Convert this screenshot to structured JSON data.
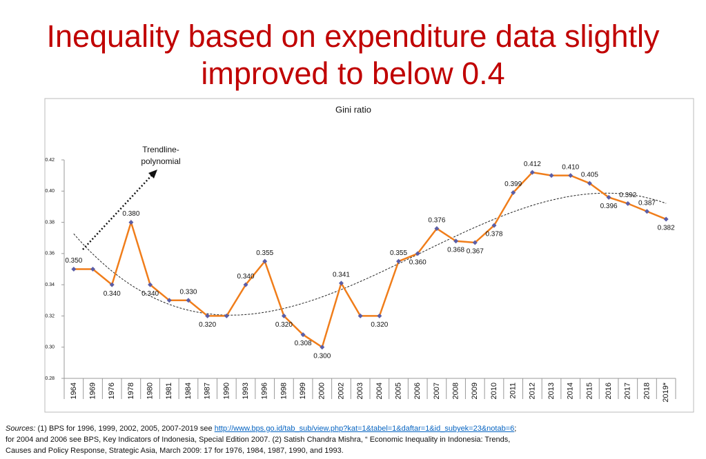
{
  "header": {
    "title": "Inequality based on expenditure data slightly improved to below 0.4"
  },
  "chart_data": {
    "type": "line",
    "title": "Gini ratio",
    "categories": [
      "1964",
      "1969",
      "1976",
      "1978",
      "1980",
      "1981",
      "1984",
      "1987",
      "1990",
      "1993",
      "1996",
      "1998",
      "1999",
      "2000",
      "2002",
      "2003",
      "2004",
      "2005",
      "2006",
      "2007",
      "2008",
      "2009",
      "2010",
      "2011",
      "2012",
      "2013",
      "2014",
      "2015",
      "2016",
      "2017",
      "2018",
      "2019*"
    ],
    "series": [
      {
        "name": "Gini ratio",
        "color": "#f07d1a",
        "marker_color": "#5b5ea6",
        "values": [
          0.35,
          0.35,
          0.34,
          0.38,
          0.34,
          0.33,
          0.33,
          0.32,
          0.32,
          0.34,
          0.355,
          0.32,
          0.308,
          0.3,
          0.341,
          0.32,
          0.32,
          0.355,
          0.36,
          0.376,
          0.368,
          0.367,
          0.378,
          0.399,
          0.412,
          0.41,
          0.41,
          0.405,
          0.396,
          0.392,
          0.387,
          0.382
        ],
        "value_labels": [
          "0.350",
          null,
          "0.340",
          "0.380",
          "0.340",
          null,
          "0.330",
          "0.320",
          null,
          "0.340",
          "0.355",
          "0.320",
          "0.308",
          "0.300",
          "0.341",
          null,
          "0.320",
          "0.355",
          "0.360",
          "0.376",
          "0.368",
          "0.367",
          "0.378",
          "0.399",
          "0.412",
          null,
          "0.410",
          "0.405",
          "0.396",
          "0.392",
          "0.387",
          "0.382"
        ]
      }
    ],
    "ylim": [
      0.28,
      0.42
    ],
    "yticks": [
      0.28,
      {
        "value": 0.3,
        "label": "0.30"
      },
      0.32,
      0.34,
      0.36,
      0.38,
      {
        "value": 0.4,
        "label": "0.40"
      },
      0.42
    ],
    "trendline": "polynomial",
    "annotation": "Trendline-polynomial",
    "grid": false
  },
  "sources": {
    "label": "Sources:",
    "text1": "(1) BPS for 1996, 1999, 2002, 2005, 2007-2019 see ",
    "link": "http://www.bps.go.id/tab_sub/view.php?kat=1&tabel=1&daftar=1&id_subyek=23&notab=6",
    "text2": "; for 2004 and 2006 see BPS, Key Indicators of Indonesia, Special Edition 2007. (2) Satish Chandra Mishra, “ Economic Inequality in Indonesia: Trends, Causes and Policy Response, Strategic Asia, March 2009: 17 for 1976, 1984, 1987, 1990, and 1993."
  }
}
